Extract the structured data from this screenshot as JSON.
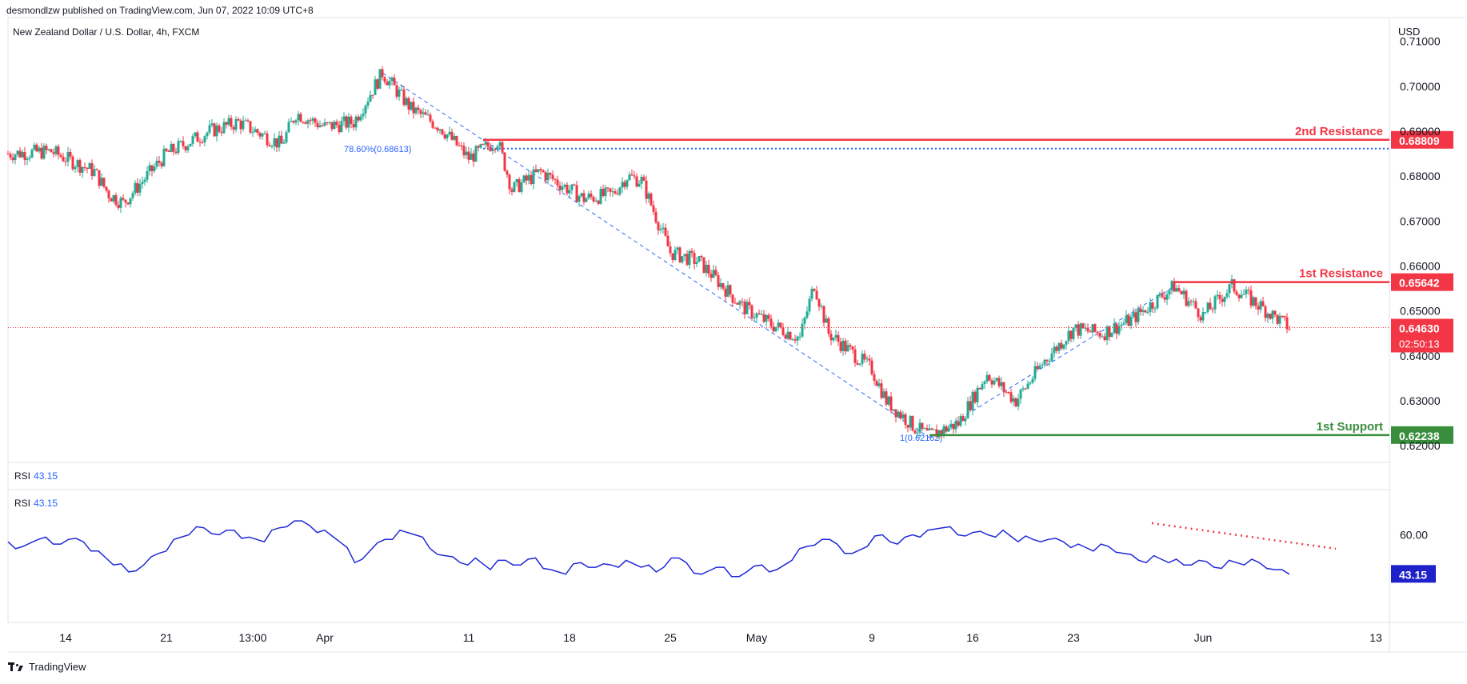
{
  "header": {
    "publisher": "desmondlzw published on TradingView.com, Jun 07, 2022 10:09 UTC+8"
  },
  "symbol": {
    "title": "New Zealand Dollar / U.S. Dollar, 4h, FXCM"
  },
  "footer": {
    "brand": "TradingView"
  },
  "colors": {
    "up": "#22ab94",
    "down": "#f23645",
    "resistance": "#f23645",
    "support": "#388e3c",
    "rsi": "#2129d6",
    "fib": "#2962ff"
  },
  "chart_data": [
    {
      "type": "candlestick",
      "title": "New Zealand Dollar / U.S. Dollar, 4h, FXCM",
      "currency": "USD",
      "y_ticks": [
        "0.71000",
        "0.70000",
        "0.69000",
        "0.68000",
        "0.67000",
        "0.66000",
        "0.65000",
        "0.64000",
        "0.63000",
        "0.62000"
      ],
      "ylim": [
        0.6195,
        0.7112
      ],
      "x_ticks": [
        "14",
        "21",
        "13:00",
        "Apr",
        "11",
        "18",
        "25",
        "May",
        "9",
        "16",
        "23",
        "Jun",
        "13"
      ],
      "close_path": [
        {
          "date": "2022-03-10",
          "value": 0.685
        },
        {
          "date": "2022-03-13",
          "value": 0.6855
        },
        {
          "date": "2022-03-16",
          "value": 0.681
        },
        {
          "date": "2022-03-17",
          "value": 0.676
        },
        {
          "date": "2022-03-18",
          "value": 0.674
        },
        {
          "date": "2022-03-21",
          "value": 0.685
        },
        {
          "date": "2022-03-24",
          "value": 0.69
        },
        {
          "date": "2022-03-26",
          "value": 0.692
        },
        {
          "date": "2022-03-29",
          "value": 0.687
        },
        {
          "date": "2022-03-30",
          "value": 0.694
        },
        {
          "date": "2022-04-01",
          "value": 0.691
        },
        {
          "date": "2022-04-03",
          "value": 0.692
        },
        {
          "date": "2022-04-05",
          "value": 0.703
        },
        {
          "date": "2022-04-07",
          "value": 0.695
        },
        {
          "date": "2022-04-09",
          "value": 0.691
        },
        {
          "date": "2022-04-11",
          "value": 0.684
        },
        {
          "date": "2022-04-13",
          "value": 0.688
        },
        {
          "date": "2022-04-14",
          "value": 0.677
        },
        {
          "date": "2022-04-16",
          "value": 0.681
        },
        {
          "date": "2022-04-19",
          "value": 0.675
        },
        {
          "date": "2022-04-21",
          "value": 0.676
        },
        {
          "date": "2022-04-22",
          "value": 0.68
        },
        {
          "date": "2022-04-23",
          "value": 0.679
        },
        {
          "date": "2022-04-25",
          "value": 0.663
        },
        {
          "date": "2022-04-27",
          "value": 0.661
        },
        {
          "date": "2022-04-30",
          "value": 0.651
        },
        {
          "date": "2022-05-02",
          "value": 0.647
        },
        {
          "date": "2022-05-04",
          "value": 0.644
        },
        {
          "date": "2022-05-05",
          "value": 0.656
        },
        {
          "date": "2022-05-06",
          "value": 0.645
        },
        {
          "date": "2022-05-09",
          "value": 0.637
        },
        {
          "date": "2022-05-10",
          "value": 0.63
        },
        {
          "date": "2022-05-12",
          "value": 0.624
        },
        {
          "date": "2022-05-13",
          "value": 0.6222
        },
        {
          "date": "2022-05-15",
          "value": 0.625
        },
        {
          "date": "2022-05-17",
          "value": 0.636
        },
        {
          "date": "2022-05-19",
          "value": 0.63
        },
        {
          "date": "2022-05-21",
          "value": 0.639
        },
        {
          "date": "2022-05-23",
          "value": 0.646
        },
        {
          "date": "2022-05-25",
          "value": 0.645
        },
        {
          "date": "2022-05-27",
          "value": 0.648
        },
        {
          "date": "2022-05-30",
          "value": 0.6555
        },
        {
          "date": "2022-06-01",
          "value": 0.649
        },
        {
          "date": "2022-06-03",
          "value": 0.6555
        },
        {
          "date": "2022-06-05",
          "value": 0.651
        },
        {
          "date": "2022-06-07",
          "value": 0.6463
        }
      ],
      "levels": [
        {
          "label": "2nd Resistance",
          "value": "0.68809",
          "kind": "resistance"
        },
        {
          "label": "1st Resistance",
          "value": "0.65642",
          "kind": "resistance"
        },
        {
          "label": "1st Support",
          "value": "0.62238",
          "kind": "support"
        }
      ],
      "fib_labels": [
        "78.60%(0.68613)",
        "1(0.62182)"
      ],
      "last_price": "0.64630",
      "countdown": "02:50:13"
    },
    {
      "type": "line",
      "title": "RSI",
      "value_label": "43.15",
      "y_ticks": [
        "60.00"
      ],
      "ylim": [
        25,
        75
      ],
      "series": [
        {
          "values": [
            57,
            55,
            58,
            56,
            58,
            57,
            53,
            47,
            44,
            47,
            52,
            58,
            60,
            63,
            60,
            62,
            59,
            57,
            63,
            66,
            64,
            62,
            57,
            48,
            53,
            58,
            62,
            60,
            54,
            51,
            48,
            50,
            45,
            49,
            47,
            50,
            45,
            43,
            48,
            46,
            47,
            49,
            46,
            44,
            50,
            48,
            43,
            46,
            42,
            44,
            47,
            45,
            49,
            55,
            58,
            56,
            52,
            55,
            60,
            56,
            60,
            62,
            63,
            60,
            61,
            60,
            62,
            57,
            58,
            58,
            57,
            56,
            53,
            55,
            52,
            49,
            51,
            48,
            47,
            49,
            46,
            49,
            47,
            48,
            45,
            43
          ]
        }
      ]
    }
  ]
}
